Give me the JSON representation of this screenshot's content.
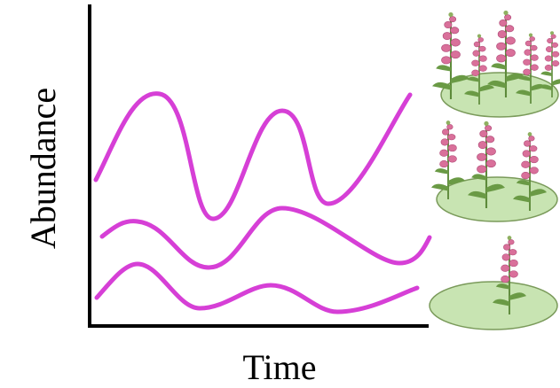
{
  "axes": {
    "y_label": "Abundance",
    "x_label": "Time"
  }
}
